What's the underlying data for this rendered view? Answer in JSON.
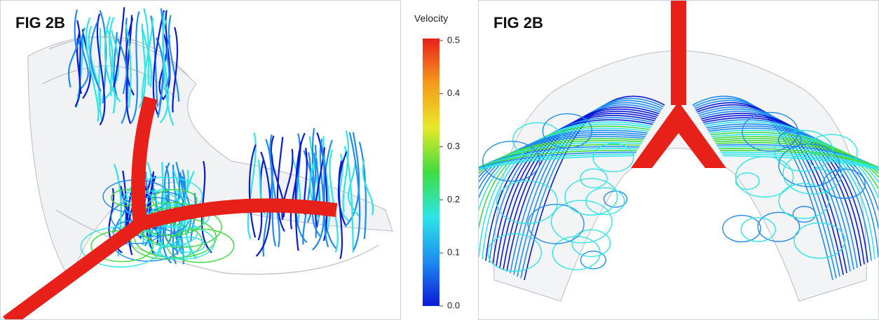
{
  "panels": [
    {
      "label": "FIG 2B"
    },
    {
      "label": "FIG 2B"
    }
  ],
  "colorbar": {
    "title": "Velocity",
    "lim": [
      0,
      0.5
    ],
    "ticks": [
      {
        "value": 0,
        "label": "0.0"
      },
      0.1,
      0.2,
      0.3,
      0.4,
      0.5
    ],
    "colors": [
      "#0a1ad8",
      "#1e8cf0",
      "#2ee6e6",
      "#3fdc3f",
      "#e8e82a",
      "#f59a1c",
      "#e8201a"
    ]
  }
}
